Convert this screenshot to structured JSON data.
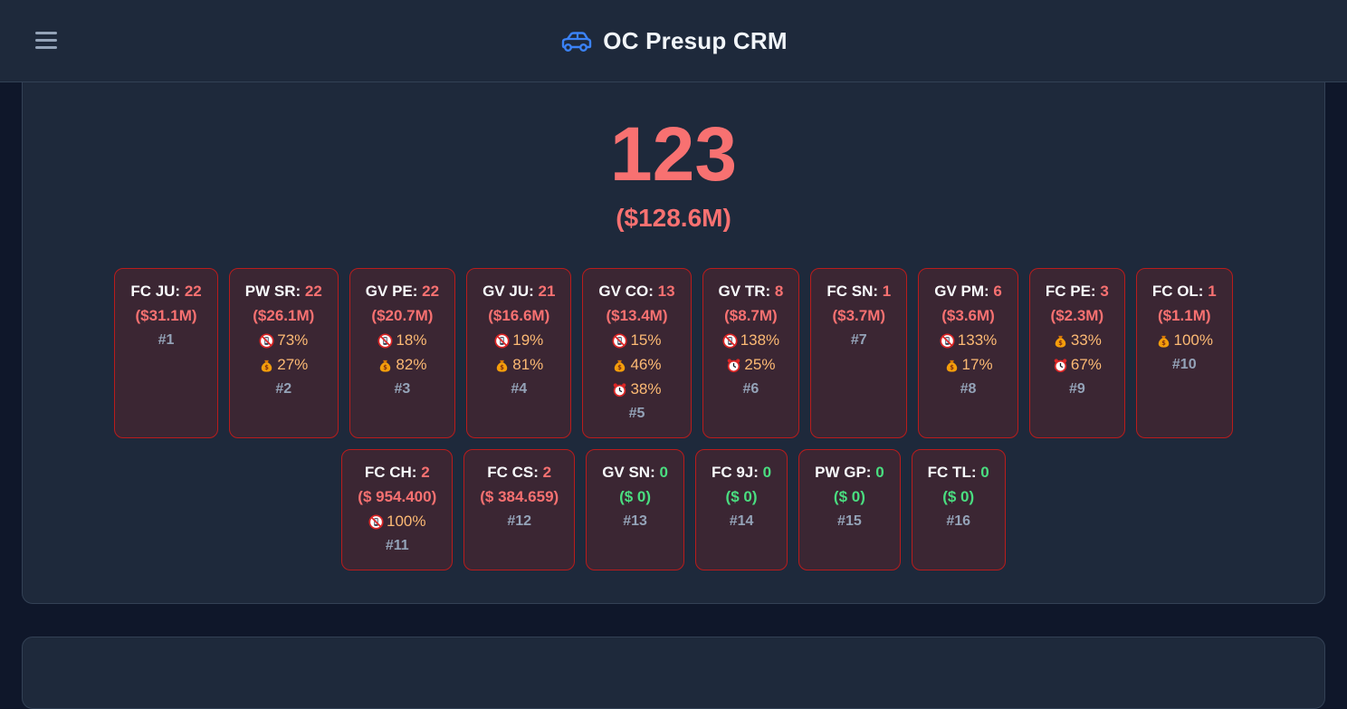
{
  "app": {
    "title": "OC Presup CRM"
  },
  "summary": {
    "count": "123",
    "amount": "($128.6M)"
  },
  "rows": [
    [
      {
        "label": "FC JU:",
        "count": "22",
        "amount": "($31.1M)",
        "tone": "red",
        "stats": [],
        "rank": "#1"
      },
      {
        "label": "PW SR:",
        "count": "22",
        "amount": "($26.1M)",
        "tone": "red",
        "stats": [
          {
            "icon": "no-phone-icon",
            "value": "73%"
          },
          {
            "icon": "money-bag-icon",
            "value": "27%"
          }
        ],
        "rank": "#2"
      },
      {
        "label": "GV PE:",
        "count": "22",
        "amount": "($20.7M)",
        "tone": "red",
        "stats": [
          {
            "icon": "no-phone-icon",
            "value": "18%"
          },
          {
            "icon": "money-bag-icon",
            "value": "82%"
          }
        ],
        "rank": "#3"
      },
      {
        "label": "GV JU:",
        "count": "21",
        "amount": "($16.6M)",
        "tone": "red",
        "stats": [
          {
            "icon": "no-phone-icon",
            "value": "19%"
          },
          {
            "icon": "money-bag-icon",
            "value": "81%"
          }
        ],
        "rank": "#4"
      },
      {
        "label": "GV CO:",
        "count": "13",
        "amount": "($13.4M)",
        "tone": "red",
        "stats": [
          {
            "icon": "no-phone-icon",
            "value": "15%"
          },
          {
            "icon": "money-bag-icon",
            "value": "46%"
          },
          {
            "icon": "alarm-clock-icon",
            "value": "38%"
          }
        ],
        "rank": "#5"
      },
      {
        "label": "GV TR:",
        "count": "8",
        "amount": "($8.7M)",
        "tone": "red",
        "stats": [
          {
            "icon": "no-phone-icon",
            "value": "138%"
          },
          {
            "icon": "alarm-clock-icon",
            "value": "25%"
          }
        ],
        "rank": "#6"
      },
      {
        "label": "FC SN:",
        "count": "1",
        "amount": "($3.7M)",
        "tone": "red",
        "stats": [],
        "rank": "#7"
      },
      {
        "label": "GV PM:",
        "count": "6",
        "amount": "($3.6M)",
        "tone": "red",
        "stats": [
          {
            "icon": "no-phone-icon",
            "value": "133%"
          },
          {
            "icon": "money-bag-icon",
            "value": "17%"
          }
        ],
        "rank": "#8"
      },
      {
        "label": "FC PE:",
        "count": "3",
        "amount": "($2.3M)",
        "tone": "red",
        "stats": [
          {
            "icon": "money-bag-icon",
            "value": "33%"
          },
          {
            "icon": "alarm-clock-icon",
            "value": "67%"
          }
        ],
        "rank": "#9"
      },
      {
        "label": "FC OL:",
        "count": "1",
        "amount": "($1.1M)",
        "tone": "red",
        "stats": [
          {
            "icon": "money-bag-icon",
            "value": "100%"
          }
        ],
        "rank": "#10"
      }
    ],
    [
      {
        "label": "FC CH:",
        "count": "2",
        "amount": "($ 954.400)",
        "tone": "red",
        "stats": [
          {
            "icon": "no-phone-icon",
            "value": "100%"
          }
        ],
        "rank": "#11"
      },
      {
        "label": "FC CS:",
        "count": "2",
        "amount": "($ 384.659)",
        "tone": "red",
        "stats": [],
        "rank": "#12"
      },
      {
        "label": "GV SN:",
        "count": "0",
        "amount": "($ 0)",
        "tone": "green",
        "stats": [],
        "rank": "#13"
      },
      {
        "label": "FC 9J:",
        "count": "0",
        "amount": "($ 0)",
        "tone": "green",
        "stats": [],
        "rank": "#14"
      },
      {
        "label": "PW GP:",
        "count": "0",
        "amount": "($ 0)",
        "tone": "green",
        "stats": [],
        "rank": "#15"
      },
      {
        "label": "FC TL:",
        "count": "0",
        "amount": "($ 0)",
        "tone": "green",
        "stats": [],
        "rank": "#16"
      }
    ]
  ],
  "colors": {
    "accent_red": "#f87171",
    "accent_green": "#4ade80",
    "stat_orange": "#fdba74",
    "rank_gray": "#94a3b8",
    "brand_blue": "#3b82f6"
  }
}
